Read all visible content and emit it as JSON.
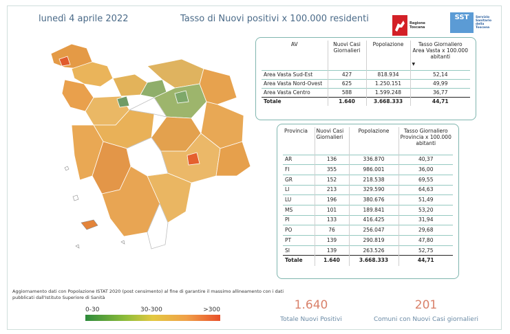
{
  "header": {
    "date": "lunedì 4 aprile 2022",
    "title": "Tasso di Nuovi positivi x 100.000 residenti",
    "logo_regione": "Regione Toscana",
    "logo_sst_badge": "SST",
    "logo_sst_text": [
      "Servizio",
      "Sanitario",
      "della",
      "Toscana"
    ]
  },
  "table_av": {
    "headers": [
      "AV",
      "Nuovi Casi Giornalieri",
      "Popolazione",
      "Tasso Giornaliero Area Vasta x 100.000 abitanti"
    ],
    "rows": [
      [
        "Area Vasta Sud-Est",
        "427",
        "818.934",
        "52,14"
      ],
      [
        "Area Vasta Nord-Ovest",
        "625",
        "1.250.151",
        "49,99"
      ],
      [
        "Area Vasta Centro",
        "588",
        "1.599.248",
        "36,77"
      ]
    ],
    "total": [
      "Totale",
      "1.640",
      "3.668.333",
      "44,71"
    ]
  },
  "table_prov": {
    "headers": [
      "Provincia",
      "Nuovi Casi Giornalieri",
      "Popolazione",
      "Tasso Giornaliero Provincia x 100.000 abitanti"
    ],
    "rows": [
      [
        "AR",
        "136",
        "336.870",
        "40,37"
      ],
      [
        "FI",
        "355",
        "986.001",
        "36,00"
      ],
      [
        "GR",
        "152",
        "218.538",
        "69,55"
      ],
      [
        "LI",
        "213",
        "329.590",
        "64,63"
      ],
      [
        "LU",
        "196",
        "380.676",
        "51,49"
      ],
      [
        "MS",
        "101",
        "189.841",
        "53,20"
      ],
      [
        "PI",
        "133",
        "416.425",
        "31,94"
      ],
      [
        "PO",
        "76",
        "256.047",
        "29,68"
      ],
      [
        "PT",
        "139",
        "290.819",
        "47,80"
      ],
      [
        "SI",
        "139",
        "263.526",
        "52,75"
      ]
    ],
    "total": [
      "Totale",
      "1.640",
      "3.668.333",
      "44,71"
    ]
  },
  "note": "Aggiornamento dati con Popolazione ISTAT 2020 (post censimento) al fine di garantire il massimo allineamento con i dati pubblicati dall'Istituto Superiore di Sanità",
  "legend": {
    "low": "0-30",
    "mid": "30-300",
    "high": ">300"
  },
  "kpi": {
    "positivi_value": "1.640",
    "positivi_label": "Totale Nuovi Positivi",
    "comuni_value": "201",
    "comuni_label": "Comuni con Nuovi Casi giornalieri"
  },
  "colors": {
    "accent_text": "#4a6a88",
    "kpi": "#d9816a",
    "table_border": "#7fb5ae"
  }
}
